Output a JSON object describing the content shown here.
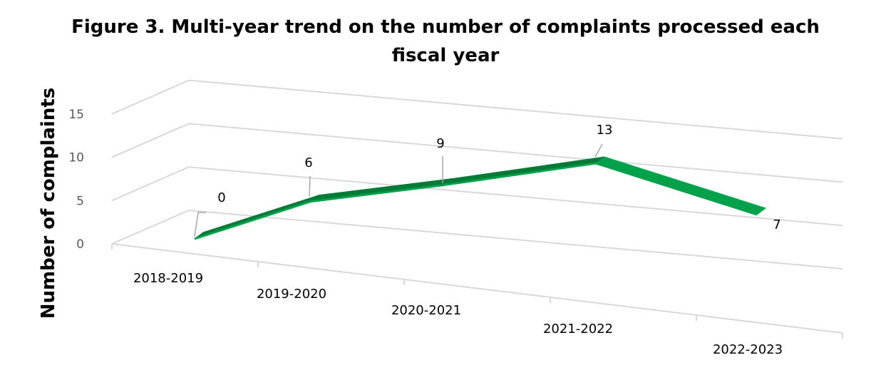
{
  "chart_data": {
    "type": "line",
    "title_line1": "Figure 3. Multi-year trend on the number of complaints processed each",
    "title_line2": "fiscal year",
    "ylabel": "Number of complaints",
    "xlabel": "",
    "categories": [
      "2018-2019",
      "2019-2020",
      "2020-2021",
      "2021-2022",
      "2022-2023"
    ],
    "series": [
      {
        "name": "Complaints",
        "values": [
          0,
          6,
          9,
          13,
          7
        ]
      }
    ],
    "data_labels": [
      "0",
      "6",
      "9",
      "13",
      "7"
    ],
    "y_ticks": [
      "0",
      "5",
      "10",
      "15"
    ],
    "ylim": [
      0,
      15
    ],
    "grid": true,
    "style": "3d-ribbon",
    "colors": {
      "ribbon_front": "#00a14b",
      "ribbon_top": "#007a37",
      "gridline": "#d9d9d9",
      "tick_text": "#595959",
      "text": "#000000"
    }
  }
}
